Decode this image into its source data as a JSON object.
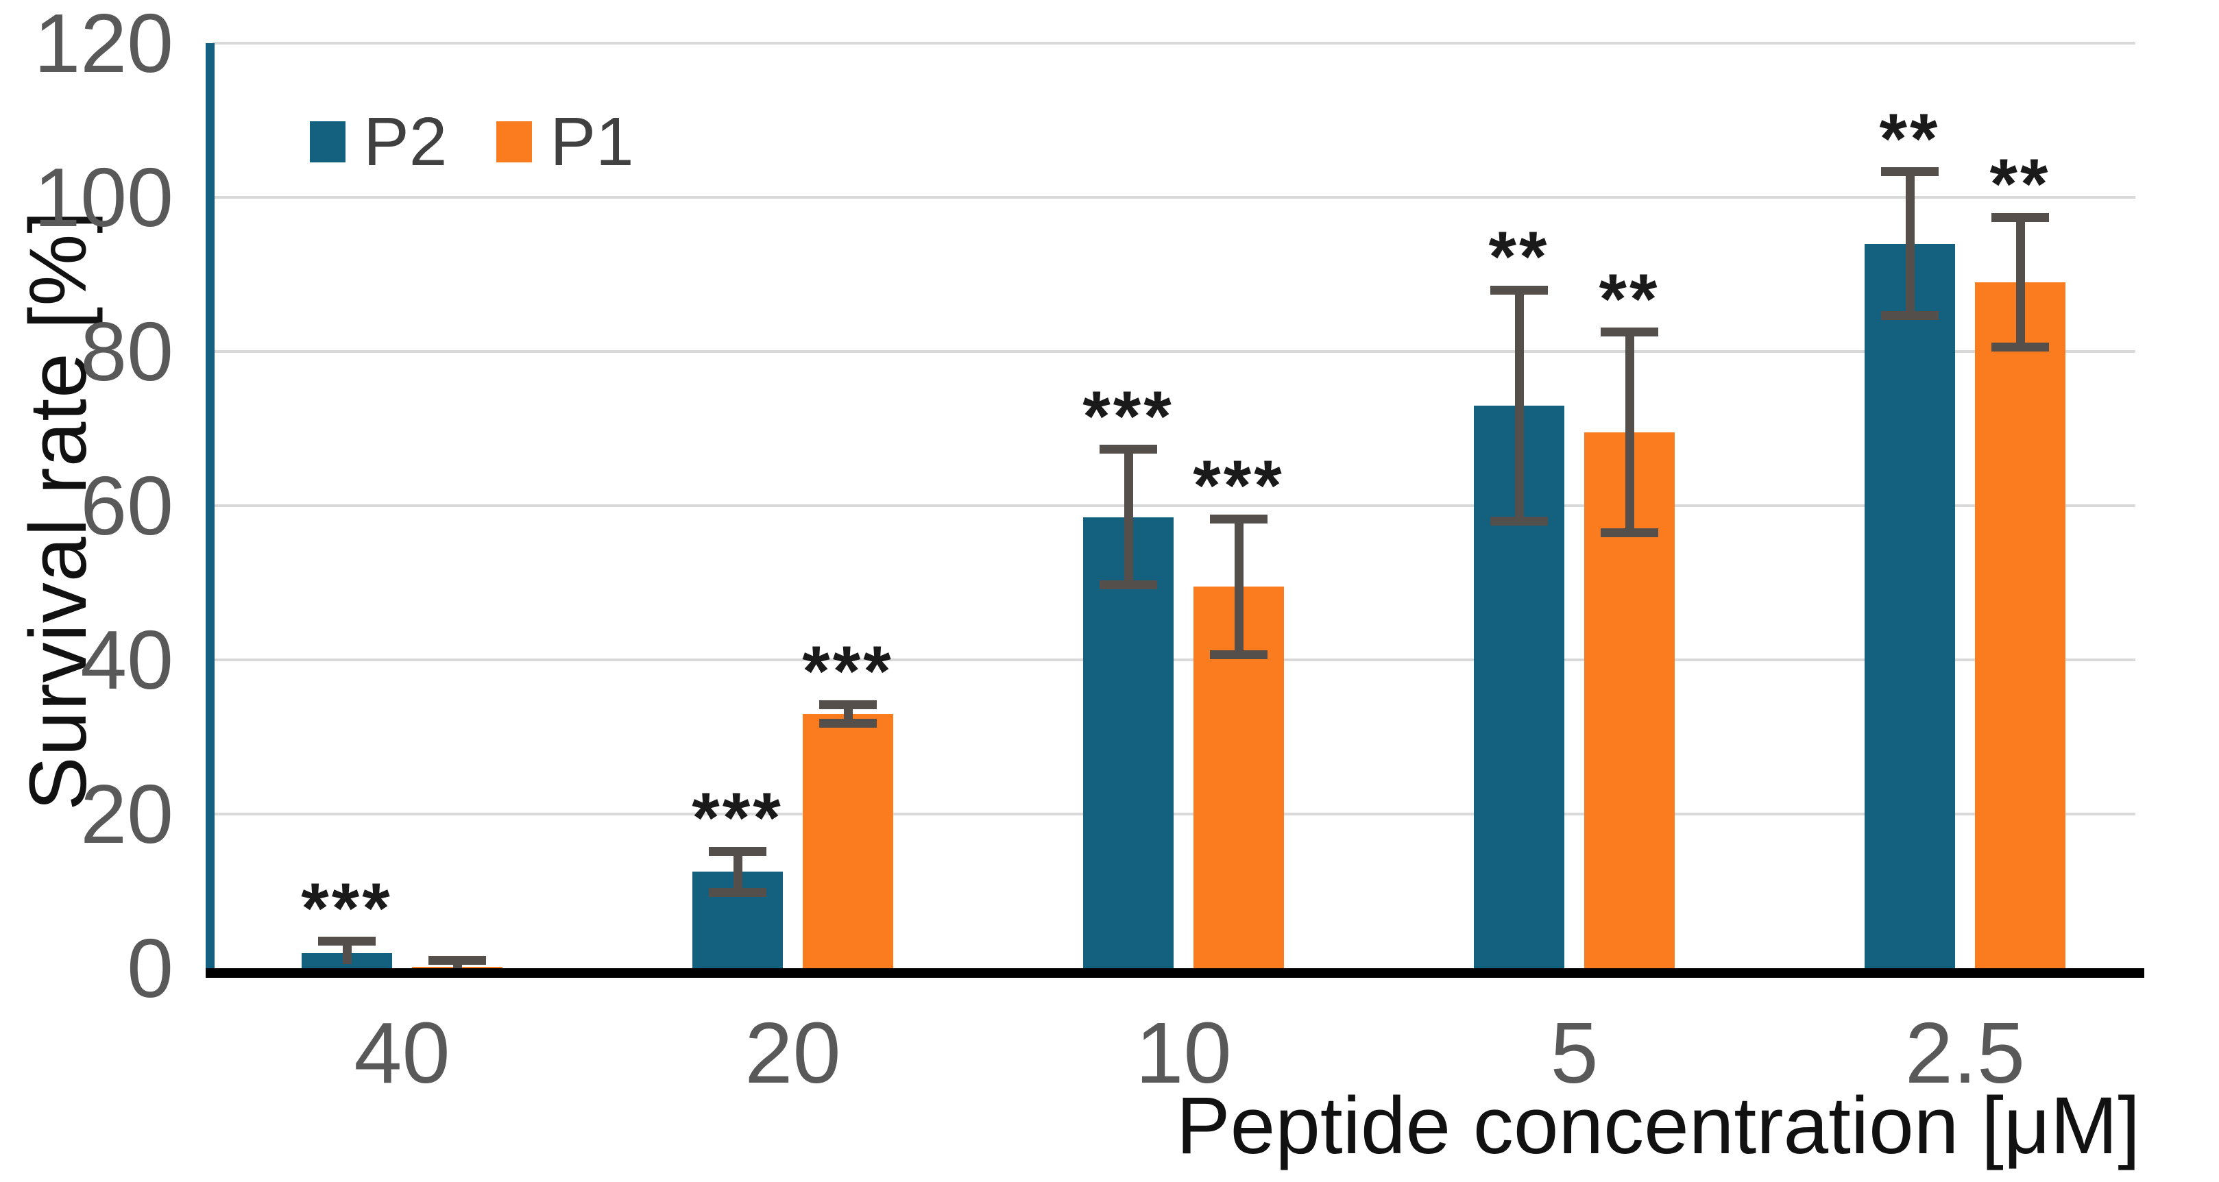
{
  "chart_data": {
    "type": "bar",
    "title": "",
    "xlabel": "Peptide concentration [μM]",
    "ylabel": "Survival rate [%]",
    "categories": [
      "40",
      "20",
      "10",
      "5",
      "2.5"
    ],
    "series": [
      {
        "name": "P2",
        "color": "#14607F",
        "values": [
          2,
          12.5,
          58.5,
          73,
          94
        ],
        "errors": [
          1.5,
          2.7,
          8.8,
          15,
          9.3
        ],
        "significance": [
          "***",
          "***",
          "***",
          "**",
          "**"
        ]
      },
      {
        "name": "P1",
        "color": "#FB7C1E",
        "values": [
          0.2,
          33,
          49.5,
          69.5,
          89
        ],
        "errors": [
          0.8,
          1.2,
          8.8,
          13,
          8.4
        ],
        "significance": [
          "",
          "***",
          "***",
          "**",
          "**"
        ]
      }
    ],
    "y_ticks": [
      0,
      20,
      40,
      60,
      80,
      100,
      120
    ],
    "ylim": [
      0,
      120
    ],
    "grid": true,
    "legend_position": "top-left-inside"
  },
  "colors": {
    "p2_teal": "#14607F",
    "p1_orange": "#FB7C1E",
    "gridline": "#D9D9D9",
    "y_axis_line": "#156082",
    "x_axis_line": "#000000",
    "tick_text": "#595959",
    "axis_title_text": "#111111",
    "legend_text": "#404040",
    "error_bar": "#544F4A",
    "stars": "#1A1A1A",
    "background": "#FFFFFF"
  }
}
